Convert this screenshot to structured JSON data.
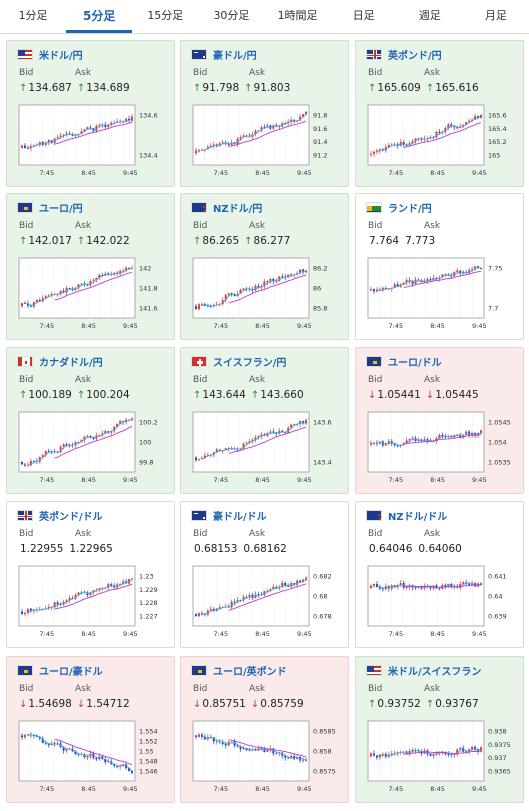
{
  "tabs": [
    {
      "label": "1分足",
      "active": false
    },
    {
      "label": "5分足",
      "active": true
    },
    {
      "label": "15分足",
      "active": false
    },
    {
      "label": "30分足",
      "active": false
    },
    {
      "label": "1時間足",
      "active": false
    },
    {
      "label": "日足",
      "active": false
    },
    {
      "label": "週足",
      "active": false
    },
    {
      "label": "月足",
      "active": false
    }
  ],
  "labels": {
    "bid": "Bid",
    "ask": "Ask"
  },
  "colors": {
    "up_bg": "#e9f4e8",
    "down_bg": "#fbeaea",
    "flat_bg": "#ffffff",
    "pair_text": "#1c64b4",
    "arrow_up": "#2a8a2a",
    "arrow_down": "#c23b3b",
    "candle_up": "#e23b3b",
    "candle_down": "#2b45c8",
    "ma_long": "#c23ad0",
    "ma_short": "#35b8e0"
  },
  "cards": [
    {
      "pair": "米ドル/円",
      "flag": "us",
      "trend": "up",
      "bid": "134.687",
      "ask": "134.689",
      "x_ticks": [
        "7:45",
        "8:45",
        "9:45"
      ],
      "y_ticks": [
        "134.6",
        "134.4"
      ],
      "start": 0.25,
      "end": 0.85,
      "seed": 11
    },
    {
      "pair": "豪ドル/円",
      "flag": "au",
      "trend": "up",
      "bid": "91.798",
      "ask": "91.803",
      "x_ticks": [
        "7:45",
        "8:45",
        "9:45"
      ],
      "y_ticks": [
        "91.8",
        "91.6",
        "91.4",
        "91.2"
      ],
      "start": 0.15,
      "end": 0.9,
      "seed": 23
    },
    {
      "pair": "英ポンド/円",
      "flag": "gb",
      "trend": "up",
      "bid": "165.609",
      "ask": "165.616",
      "x_ticks": [
        "7:45",
        "8:45",
        "9:45"
      ],
      "y_ticks": [
        "165.6",
        "165.4",
        "165.2",
        "165"
      ],
      "start": 0.12,
      "end": 0.9,
      "seed": 37
    },
    {
      "pair": "ユーロ/円",
      "flag": "eu",
      "trend": "up",
      "bid": "142.017",
      "ask": "142.022",
      "x_ticks": [
        "7:45",
        "8:45",
        "9:45"
      ],
      "y_ticks": [
        "142",
        "141.8",
        "141.6"
      ],
      "start": 0.15,
      "end": 0.92,
      "seed": 41
    },
    {
      "pair": "NZドル/円",
      "flag": "nz",
      "trend": "up",
      "bid": "86.265",
      "ask": "86.277",
      "x_ticks": [
        "7:45",
        "8:45",
        "9:45"
      ],
      "y_ticks": [
        "86.2",
        "86",
        "85.8"
      ],
      "start": 0.15,
      "end": 0.88,
      "seed": 53
    },
    {
      "pair": "ランド/円",
      "flag": "za",
      "trend": "flat",
      "bid": "7.764",
      "ask": "7.773",
      "x_ticks": [
        "7:45",
        "8:45",
        "9:45"
      ],
      "y_ticks": [
        "7.75",
        "7.7"
      ],
      "start": 0.45,
      "end": 0.9,
      "seed": 67
    },
    {
      "pair": "カナダドル/円",
      "flag": "ca",
      "trend": "up",
      "bid": "100.189",
      "ask": "100.204",
      "x_ticks": [
        "7:45",
        "8:45",
        "9:45"
      ],
      "y_ticks": [
        "100.2",
        "100",
        "99.8"
      ],
      "start": 0.12,
      "end": 0.92,
      "seed": 71
    },
    {
      "pair": "スイスフラン/円",
      "flag": "ch",
      "trend": "up",
      "bid": "143.644",
      "ask": "143.660",
      "x_ticks": [
        "7:45",
        "8:45",
        "9:45"
      ],
      "y_ticks": [
        "143.6",
        "143.4"
      ],
      "start": 0.2,
      "end": 0.88,
      "seed": 83
    },
    {
      "pair": "ユーロ/ドル",
      "flag": "eu-us",
      "trend": "down",
      "bid": "1.05441",
      "ask": "1.05445",
      "x_ticks": [
        "7:45",
        "8:45",
        "9:45"
      ],
      "y_ticks": [
        "1.0545",
        "1.054",
        "1.0535"
      ],
      "start": 0.45,
      "end": 0.7,
      "seed": 97
    },
    {
      "pair": "英ポンド/ドル",
      "flag": "gb-us",
      "trend": "flat",
      "bid": "1.22955",
      "ask": "1.22965",
      "x_ticks": [
        "7:45",
        "8:45",
        "9:45"
      ],
      "y_ticks": [
        "1.23",
        "1.229",
        "1.228",
        "1.227"
      ],
      "start": 0.2,
      "end": 0.85,
      "seed": 101
    },
    {
      "pair": "豪ドル/ドル",
      "flag": "au-us",
      "trend": "flat",
      "bid": "0.68153",
      "ask": "0.68162",
      "x_ticks": [
        "7:45",
        "8:45",
        "9:45"
      ],
      "y_ticks": [
        "0.682",
        "0.68",
        "0.678"
      ],
      "start": 0.15,
      "end": 0.88,
      "seed": 113
    },
    {
      "pair": "NZドル/ドル",
      "flag": "nz-us",
      "trend": "flat",
      "bid": "0.64046",
      "ask": "0.64060",
      "x_ticks": [
        "7:45",
        "8:45",
        "9:45"
      ],
      "y_ticks": [
        "0.641",
        "0.64",
        "0.639"
      ],
      "start": 0.65,
      "end": 0.72,
      "seed": 127
    },
    {
      "pair": "ユーロ/豪ドル",
      "flag": "eu-au",
      "trend": "down",
      "bid": "1.54698",
      "ask": "1.54712",
      "x_ticks": [
        "7:45",
        "8:45",
        "9:45"
      ],
      "y_ticks": [
        "1.554",
        "1.552",
        "1.55",
        "1.548",
        "1.546"
      ],
      "start": 0.8,
      "end": 0.15,
      "seed": 131
    },
    {
      "pair": "ユーロ/英ポンド",
      "flag": "eu-gb",
      "trend": "down",
      "bid": "0.85751",
      "ask": "0.85759",
      "x_ticks": [
        "7:45",
        "8:45",
        "9:45"
      ],
      "y_ticks": [
        "0.8585",
        "0.858",
        "0.8575"
      ],
      "start": 0.8,
      "end": 0.3,
      "seed": 149
    },
    {
      "pair": "米ドル/スイスフラン",
      "flag": "us-ch",
      "trend": "up",
      "bid": "0.93752",
      "ask": "0.93767",
      "x_ticks": [
        "7:45",
        "8:45",
        "9:45"
      ],
      "y_ticks": [
        "0.938",
        "0.9375",
        "0.937",
        "0.9365"
      ],
      "start": 0.4,
      "end": 0.55,
      "seed": 157
    }
  ]
}
